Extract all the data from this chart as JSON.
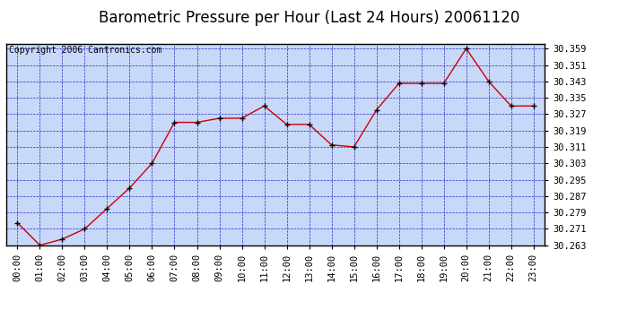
{
  "title": "Barometric Pressure per Hour (Last 24 Hours) 20061120",
  "copyright": "Copyright 2006 Cantronics.com",
  "hours": [
    "00:00",
    "01:00",
    "02:00",
    "03:00",
    "04:00",
    "05:00",
    "06:00",
    "07:00",
    "08:00",
    "09:00",
    "10:00",
    "11:00",
    "12:00",
    "13:00",
    "14:00",
    "15:00",
    "16:00",
    "17:00",
    "18:00",
    "19:00",
    "20:00",
    "21:00",
    "22:00",
    "23:00"
  ],
  "values": [
    30.274,
    30.263,
    30.266,
    30.271,
    30.281,
    30.291,
    30.303,
    30.323,
    30.323,
    30.325,
    30.325,
    30.331,
    30.322,
    30.322,
    30.312,
    30.311,
    30.329,
    30.342,
    30.342,
    30.342,
    30.359,
    30.343,
    30.331,
    30.331
  ],
  "ylim_min": 30.263,
  "ylim_max": 30.3614,
  "yticks": [
    30.263,
    30.271,
    30.279,
    30.287,
    30.295,
    30.303,
    30.311,
    30.319,
    30.327,
    30.335,
    30.343,
    30.351,
    30.359
  ],
  "line_color": "#cc0000",
  "marker_color": "#000000",
  "bg_color": "#c8d8f8",
  "grid_color": "#0000bb",
  "border_color": "#000000",
  "title_fontsize": 12,
  "copyright_fontsize": 7,
  "tick_fontsize": 7.5
}
